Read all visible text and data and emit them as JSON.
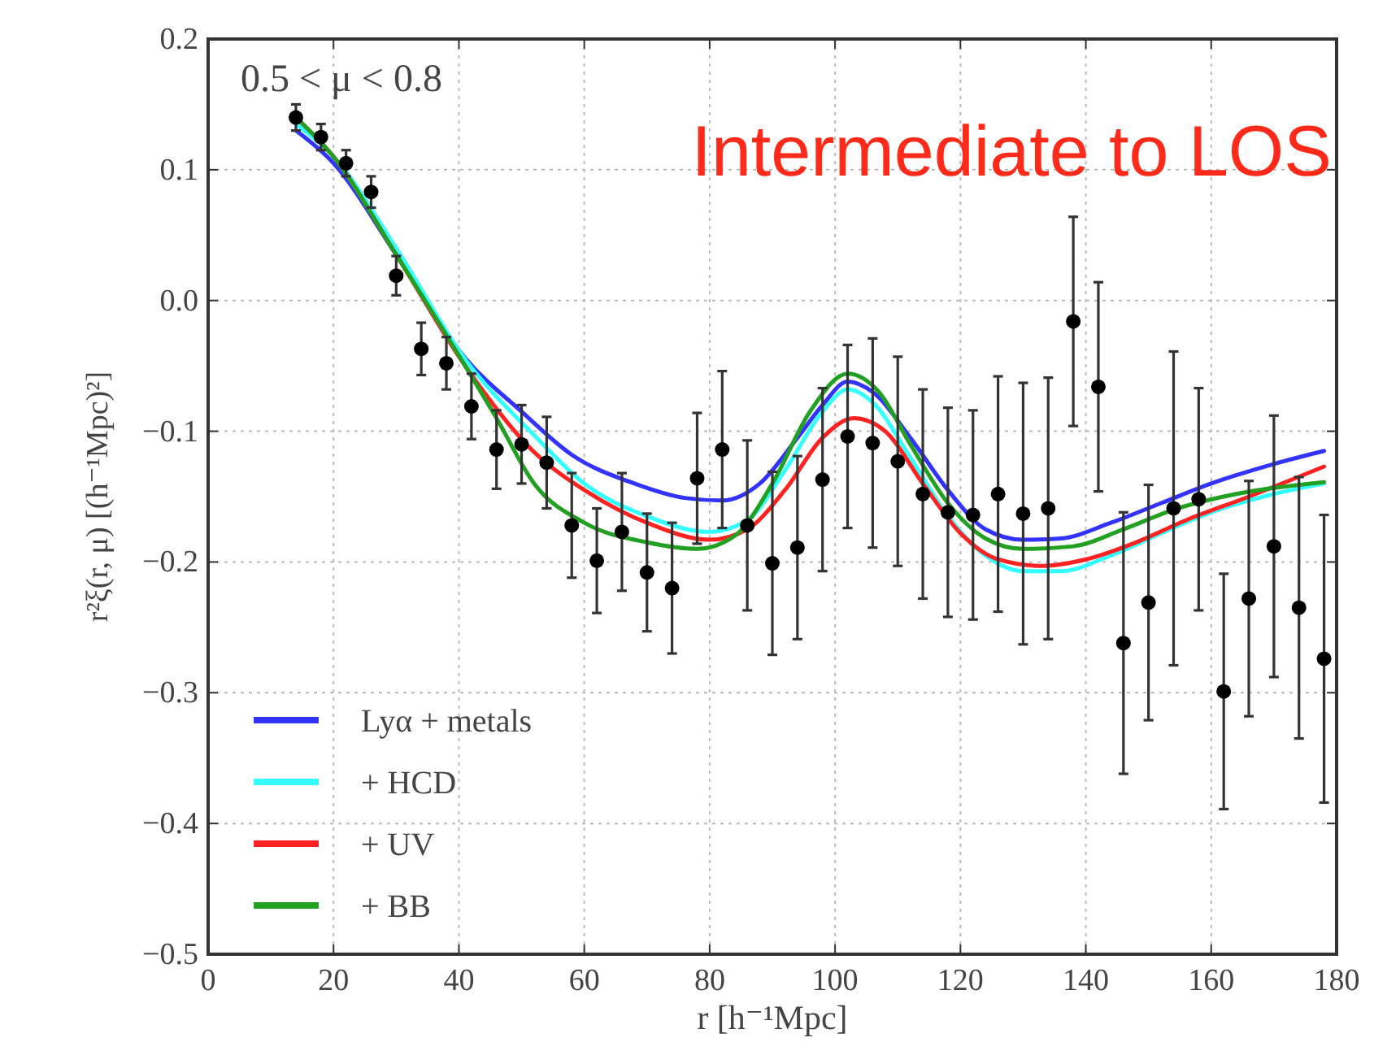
{
  "chart_data": {
    "type": "line",
    "xlabel": "r [h⁻¹Mpc]",
    "ylabel": "r²ξ(r, μ) [(h⁻¹Mpc)²]",
    "annotations": [
      "0.5 < μ < 0.8",
      "Intermediate to LOS"
    ],
    "xlim": [
      0,
      180
    ],
    "xticks": [
      0,
      20,
      40,
      60,
      80,
      100,
      120,
      140,
      160,
      180
    ],
    "ylim": [
      -0.5,
      0.2
    ],
    "yticks": [
      {
        "value": -0.5,
        "label": "−0.5"
      },
      {
        "value": -0.4,
        "label": "−0.4"
      },
      {
        "value": -0.3,
        "label": "−0.3"
      },
      {
        "value": -0.2,
        "label": "−0.2"
      },
      {
        "value": -0.1,
        "label": "−0.1"
      },
      {
        "value": 0,
        "label": "0.0"
      },
      {
        "value": 0.1,
        "label": "0.1"
      },
      {
        "value": 0.2,
        "label": "0.2"
      }
    ],
    "grid": true,
    "legend": "bottom left",
    "line_style": "solid",
    "marker": "none",
    "series": [
      {
        "name": "Lyα + metals",
        "color": "#3333ff",
        "x": [
          14,
          20,
          30,
          41,
          50,
          58,
          68,
          76,
          82,
          88,
          94,
          98,
          102,
          106,
          112,
          118,
          124,
          130,
          136,
          144,
          152,
          160,
          170,
          178
        ],
        "values": [
          0.13,
          0.105,
          0.035,
          -0.044,
          -0.085,
          -0.118,
          -0.14,
          -0.151,
          -0.153,
          -0.14,
          -0.105,
          -0.08,
          -0.062,
          -0.07,
          -0.105,
          -0.145,
          -0.175,
          -0.183,
          -0.182,
          -0.17,
          -0.155,
          -0.14,
          -0.125,
          -0.115
        ]
      },
      {
        "name": "+ HCD",
        "color": "#33ffff",
        "x": [
          14,
          20,
          30,
          41,
          52,
          60,
          70,
          80,
          86,
          92,
          98,
          102,
          106,
          112,
          118,
          124,
          130,
          136,
          144,
          152,
          160,
          170,
          178
        ],
        "values": [
          0.135,
          0.11,
          0.04,
          -0.045,
          -0.103,
          -0.14,
          -0.165,
          -0.177,
          -0.168,
          -0.13,
          -0.085,
          -0.068,
          -0.078,
          -0.12,
          -0.165,
          -0.195,
          -0.207,
          -0.207,
          -0.195,
          -0.178,
          -0.162,
          -0.148,
          -0.14
        ]
      },
      {
        "name": "+ UV",
        "color": "#ff2222",
        "x": [
          14,
          20,
          30,
          41,
          52,
          60,
          70,
          80,
          86,
          92,
          98,
          103,
          108,
          114,
          120,
          126,
          133,
          140,
          148,
          156,
          166,
          178
        ],
        "values": [
          0.14,
          0.11,
          0.035,
          -0.05,
          -0.116,
          -0.145,
          -0.17,
          -0.183,
          -0.175,
          -0.145,
          -0.105,
          -0.09,
          -0.1,
          -0.14,
          -0.178,
          -0.198,
          -0.203,
          -0.198,
          -0.185,
          -0.168,
          -0.15,
          -0.127
        ]
      },
      {
        "name": "+ BB",
        "color": "#22a022",
        "x": [
          14,
          20,
          30,
          41,
          46,
          52,
          60,
          70,
          78,
          84,
          90,
          96,
          102,
          107,
          112,
          118,
          124,
          130,
          138,
          146,
          154,
          164,
          178
        ],
        "values": [
          0.14,
          0.11,
          0.035,
          -0.05,
          -0.09,
          -0.14,
          -0.17,
          -0.185,
          -0.19,
          -0.18,
          -0.14,
          -0.085,
          -0.056,
          -0.07,
          -0.11,
          -0.155,
          -0.182,
          -0.19,
          -0.188,
          -0.175,
          -0.16,
          -0.148,
          -0.139
        ]
      },
      {
        "type": "scatter",
        "color": "#000000",
        "marker": "circle",
        "x": [
          14,
          18,
          22,
          26,
          30,
          34,
          38,
          42,
          46,
          50,
          54,
          58,
          62,
          66,
          70,
          74,
          78,
          82,
          86,
          90,
          94,
          98,
          102,
          106,
          110,
          114,
          118,
          122,
          126,
          130,
          134,
          138,
          142,
          146,
          150,
          154,
          158,
          162,
          166,
          170,
          174,
          178
        ],
        "values": [
          0.14,
          0.125,
          0.105,
          0.083,
          0.019,
          -0.037,
          -0.048,
          -0.081,
          -0.114,
          -0.11,
          -0.124,
          -0.172,
          -0.199,
          -0.177,
          -0.208,
          -0.22,
          -0.136,
          -0.114,
          -0.172,
          -0.201,
          -0.189,
          -0.137,
          -0.104,
          -0.109,
          -0.123,
          -0.148,
          -0.162,
          -0.164,
          -0.148,
          -0.163,
          -0.159,
          -0.016,
          -0.066,
          -0.262,
          -0.231,
          -0.159,
          -0.152,
          -0.299,
          -0.228,
          -0.188,
          -0.235,
          -0.274
        ],
        "errors": [
          0.01,
          0.01,
          0.01,
          0.012,
          0.015,
          0.02,
          0.02,
          0.025,
          0.03,
          0.03,
          0.035,
          0.04,
          0.04,
          0.045,
          0.045,
          0.05,
          0.05,
          0.06,
          0.065,
          0.07,
          0.07,
          0.07,
          0.07,
          0.08,
          0.08,
          0.08,
          0.08,
          0.08,
          0.09,
          0.1,
          0.1,
          0.08,
          0.08,
          0.1,
          0.09,
          0.12,
          0.085,
          0.09,
          0.09,
          0.1,
          0.1,
          0.11
        ]
      }
    ]
  }
}
